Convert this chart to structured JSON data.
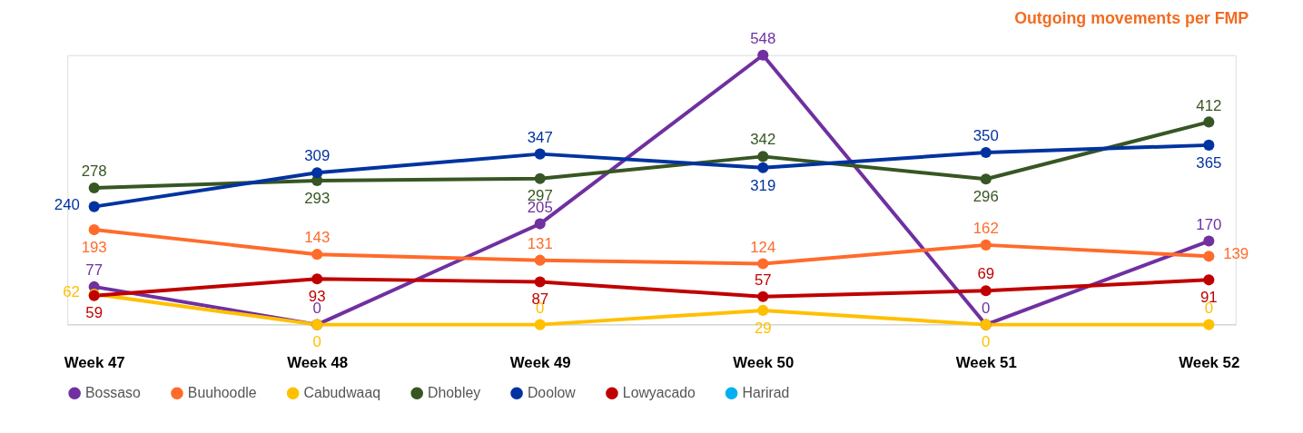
{
  "chart_data": {
    "type": "line",
    "title": "Outgoing movements per FMP",
    "categories": [
      "Week 47",
      "Week 48",
      "Week 49",
      "Week 50",
      "Week 51",
      "Week 52"
    ],
    "series": [
      {
        "name": "Bossaso",
        "color": "#7030a0",
        "values": [
          77,
          0,
          205,
          548,
          0,
          170
        ]
      },
      {
        "name": "Buuhoodle",
        "color": "#ff6b2b",
        "values": [
          193,
          143,
          131,
          124,
          162,
          139
        ]
      },
      {
        "name": "Cabudwaaq",
        "color": "#ffc000",
        "values": [
          62,
          0,
          0,
          29,
          0,
          0
        ]
      },
      {
        "name": "Dhobley",
        "color": "#375623",
        "values": [
          278,
          293,
          297,
          342,
          296,
          412
        ]
      },
      {
        "name": "Doolow",
        "color": "#0033a0",
        "values": [
          240,
          309,
          347,
          319,
          350,
          365
        ]
      },
      {
        "name": "Lowyacado",
        "color": "#c00000",
        "values": [
          59,
          93,
          87,
          57,
          69,
          91
        ]
      },
      {
        "name": "Harirad",
        "color": "#00b0f0",
        "values": [
          null,
          null,
          null,
          null,
          null,
          null
        ]
      }
    ],
    "data_labels": true,
    "marker": "circle",
    "line_style": "solid",
    "grid": false,
    "legend": "bottom"
  }
}
